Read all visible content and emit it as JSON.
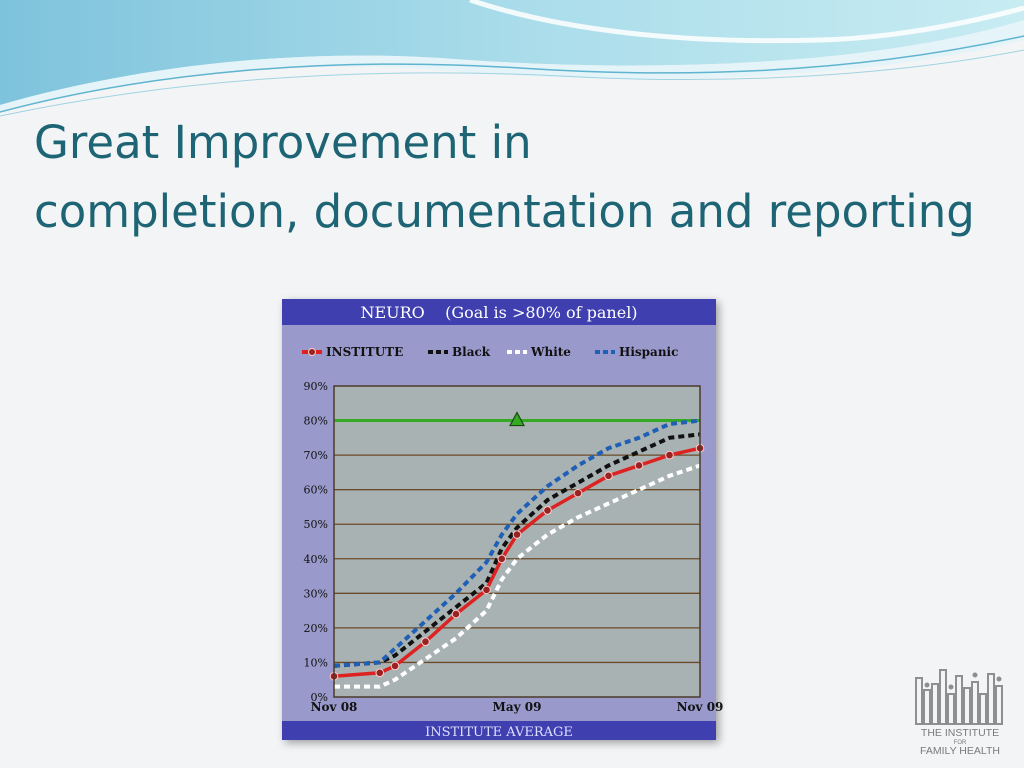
{
  "slide": {
    "title_line1": "Great Improvement in",
    "title_line2": "completion, documentation and reporting"
  },
  "chart_data": {
    "type": "line",
    "title": "NEURO    (Goal is >80% of panel)",
    "footer": "INSTITUTE AVERAGE",
    "ylim": [
      0,
      90
    ],
    "ytick_labels": [
      "0%",
      "10%",
      "20%",
      "30%",
      "40%",
      "50%",
      "60%",
      "70%",
      "80%",
      "90%"
    ],
    "ytick_values": [
      0,
      10,
      20,
      30,
      40,
      50,
      60,
      70,
      80,
      90
    ],
    "xlim": [
      0,
      12
    ],
    "xtick_labels": [
      "Nov 08",
      "May 09",
      "Nov 09"
    ],
    "xtick_values": [
      0,
      6,
      12
    ],
    "grid": true,
    "legend_position": "top",
    "goal": {
      "value": 80,
      "marker_x": 6,
      "color": "#33aa22"
    },
    "series": [
      {
        "name": "INSTITUTE",
        "color": "#dd2222",
        "style": "solid",
        "markers": true,
        "x": [
          0,
          1.5,
          2,
          3,
          4,
          5,
          5.5,
          6,
          7,
          8,
          9,
          10,
          11,
          12
        ],
        "values": [
          6,
          7,
          9,
          16,
          24,
          31,
          40,
          47,
          54,
          59,
          64,
          67,
          70,
          72
        ]
      },
      {
        "name": "Black",
        "color": "#111111",
        "style": "dashed",
        "markers": false,
        "x": [
          0,
          1.5,
          2,
          3,
          4,
          5,
          5.5,
          6,
          7,
          8,
          9,
          10,
          11,
          12
        ],
        "values": [
          9,
          10,
          12,
          19,
          26,
          33,
          43,
          49,
          57,
          62,
          67,
          71,
          75,
          76
        ]
      },
      {
        "name": "White",
        "color": "#ffffff",
        "style": "dashed",
        "markers": false,
        "x": [
          0,
          1.5,
          2,
          3,
          4,
          5,
          5.5,
          6,
          7,
          8,
          9,
          10,
          11,
          12
        ],
        "values": [
          3,
          3,
          5,
          11,
          17,
          25,
          34,
          40,
          47,
          52,
          56,
          60,
          64,
          67
        ]
      },
      {
        "name": "Hispanic",
        "color": "#1f5fb5",
        "style": "dashed",
        "markers": false,
        "x": [
          0,
          1.5,
          2,
          3,
          4,
          5,
          5.5,
          6,
          7,
          8,
          9,
          10,
          11,
          12
        ],
        "values": [
          9,
          10,
          14,
          22,
          30,
          39,
          47,
          53,
          61,
          67,
          72,
          75,
          79,
          80
        ]
      }
    ]
  },
  "logo": {
    "line1": "THE INSTITUTE",
    "line2": "FOR",
    "line3": "FAMILY HEALTH"
  }
}
